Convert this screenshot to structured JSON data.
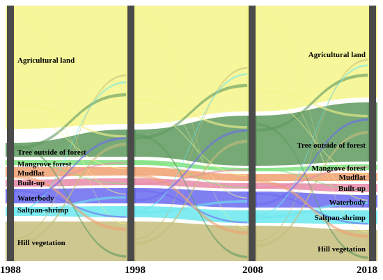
{
  "years": [
    "1988",
    "1998",
    "2008",
    "2018"
  ],
  "categories": [
    {
      "name": "Agricultural land",
      "color": "#f5f58a"
    },
    {
      "name": "Tree outside of forest",
      "color": "#5f9a5f"
    },
    {
      "name": "Mangrove forest",
      "color": "#7de07d"
    },
    {
      "name": "Mudflat",
      "color": "#f0a070"
    },
    {
      "name": "Built-up",
      "color": "#e88aa8"
    },
    {
      "name": "Waterbody",
      "color": "#6a6af0"
    },
    {
      "name": "Saltpan-shrimp",
      "color": "#6ae8ee"
    },
    {
      "name": "Hill vegetation",
      "color": "#c6bd7c"
    }
  ],
  "labels": {
    "y1988": [
      "Agricultural land",
      "Tree outside of forest",
      "Mangrove forest",
      "Mudflat",
      "Built-up",
      "Waterbody",
      "Saltpan-shrimp",
      "Hill vegetation"
    ],
    "y2018": [
      "Agricultural land",
      "Tree outside of forest",
      "Mangrove forest",
      "Mudflat",
      "Built-up",
      "Waterbody",
      "Saltpan-shrimp",
      "Hill vegetation"
    ]
  }
}
